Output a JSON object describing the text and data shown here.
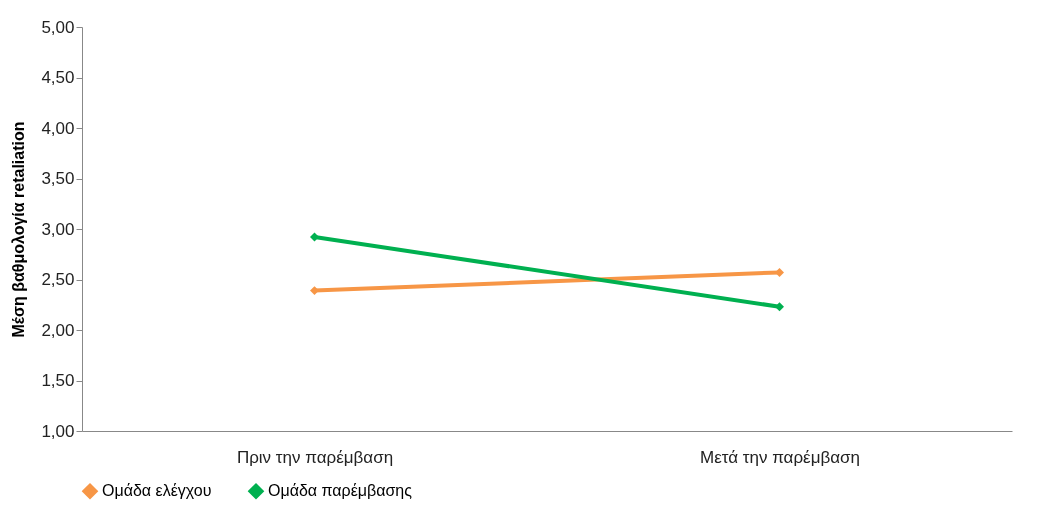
{
  "chart_data": {
    "type": "line",
    "ylabel": "Μέση βαθμολογία  retaliation",
    "categories": [
      "Πριν την παρέμβαση",
      "Μετά την παρέμβαση"
    ],
    "series": [
      {
        "name": "Ομάδα ελέγχου",
        "color": "#f79646",
        "values": [
          2.39,
          2.57
        ]
      },
      {
        "name": "Ομάδα παρέμβασης",
        "color": "#00b050",
        "values": [
          2.92,
          2.23
        ]
      }
    ],
    "ylim": [
      1,
      5
    ],
    "yticks": [
      {
        "value": 1,
        "label": "1,00"
      },
      {
        "value": 1.5,
        "label": "1,50"
      },
      {
        "value": 2,
        "label": "2,00"
      },
      {
        "value": 2.5,
        "label": "2,50"
      },
      {
        "value": 3,
        "label": "3,00"
      },
      {
        "value": 3.5,
        "label": "3,50"
      },
      {
        "value": 4,
        "label": "4,00"
      },
      {
        "value": 4.5,
        "label": "4,50"
      },
      {
        "value": 5,
        "label": "5,00"
      }
    ],
    "grid": false,
    "legend": "bottom",
    "marker": "diamond",
    "line_style": "solid"
  }
}
